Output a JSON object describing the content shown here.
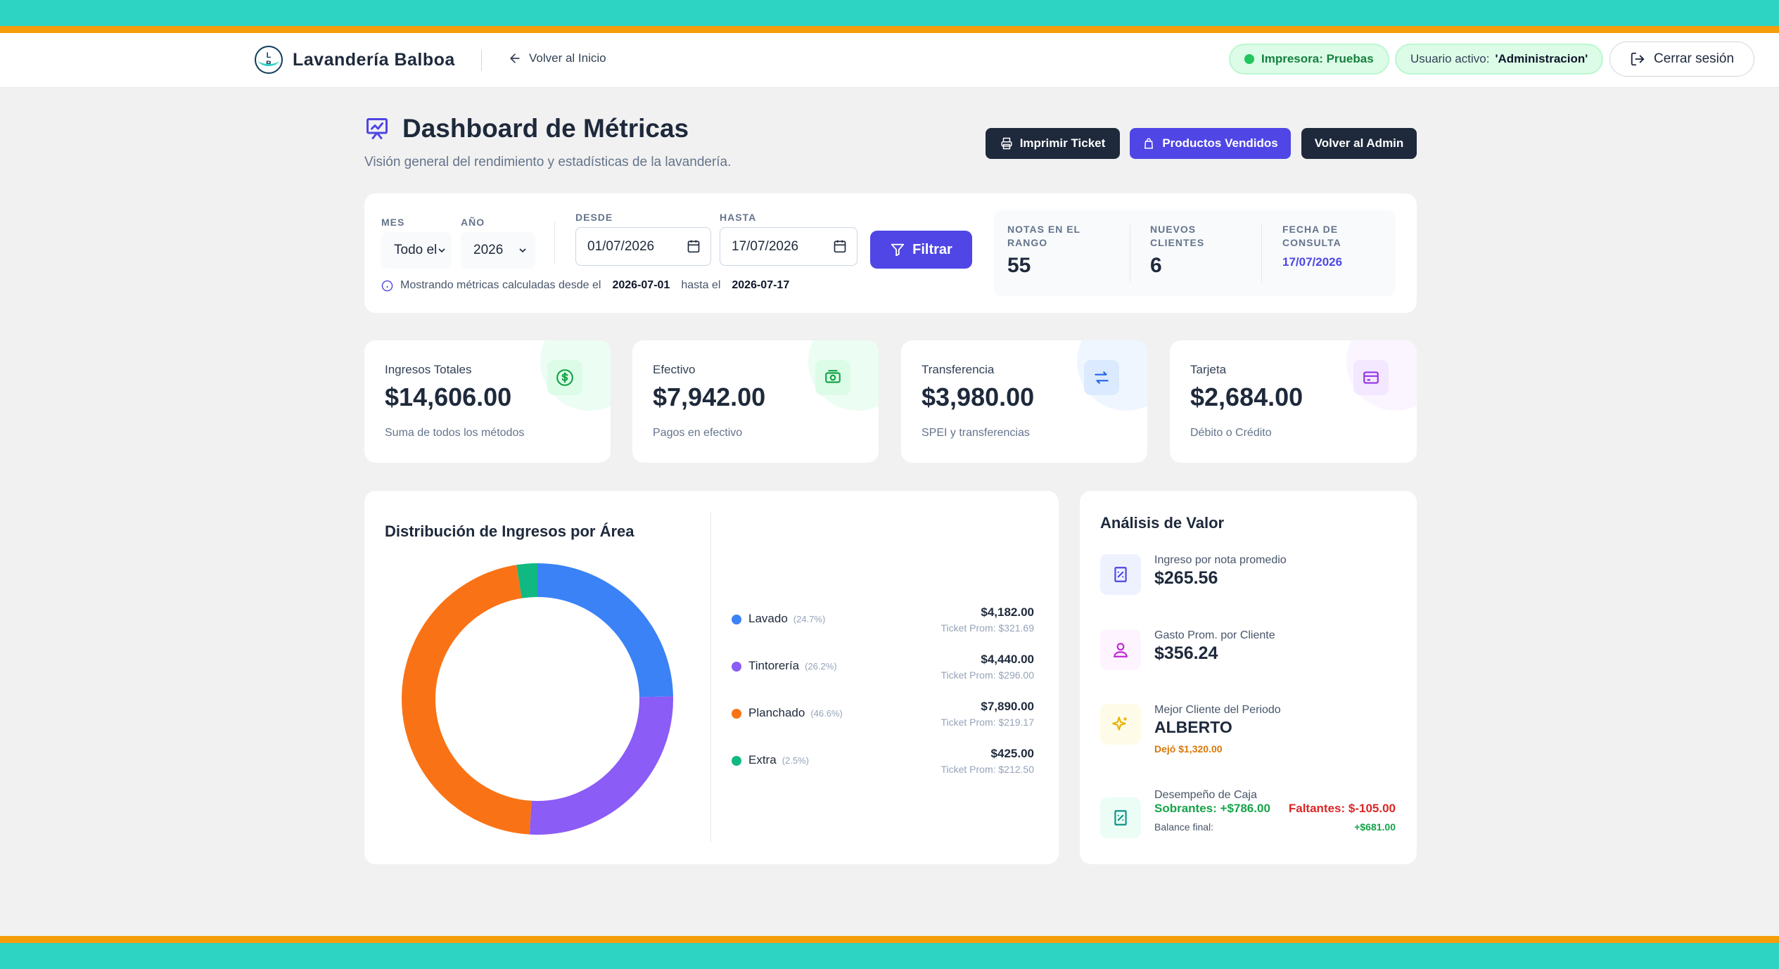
{
  "colors": {
    "teal": "#2dd4c4",
    "orange_stripe": "#f59e0b",
    "primary": "#4f46e5",
    "dark": "#1e293b",
    "green": "#16a34a",
    "red": "#dc2626"
  },
  "navbar": {
    "logo_letters": [
      "L",
      "B"
    ],
    "brand": "Lavandería Balboa",
    "back_home": "Volver al Inicio",
    "printer_status": "Impresora: Pruebas",
    "user_label": "Usuario activo:",
    "user_value": "'Administracion'",
    "logout": "Cerrar sesión"
  },
  "header": {
    "title": "Dashboard de Métricas",
    "subtitle": "Visión general del rendimiento y estadísticas de la lavandería.",
    "btn_print": "Imprimir Ticket",
    "btn_products": "Productos Vendidos",
    "btn_admin": "Volver al Admin"
  },
  "filters": {
    "mes_label": "MES",
    "mes_value": "Todo el m",
    "anio_label": "AÑO",
    "anio_value": "2026",
    "desde_label": "DESDE",
    "desde_value": "01/07/2026",
    "hasta_label": "HASTA",
    "hasta_value": "17/07/2026",
    "filter_btn": "Filtrar",
    "info_prefix": "Mostrando métricas calculadas desde el",
    "info_from": "2026-07-01",
    "info_mid": "hasta el",
    "info_to": "2026-07-17"
  },
  "summary": {
    "notas_label": "NOTAS EN EL RANGO",
    "notas_value": "55",
    "clientes_label": "NUEVOS CLIENTES",
    "clientes_value": "6",
    "fecha_label": "FECHA DE CONSULTA",
    "fecha_value": "17/07/2026"
  },
  "kpis": [
    {
      "title": "Ingresos Totales",
      "value": "$14,606.00",
      "sub": "Suma de todos los métodos",
      "icon": "dollar-circle-icon",
      "color": "#16a34a",
      "bg": "#dcfce7"
    },
    {
      "title": "Efectivo",
      "value": "$7,942.00",
      "sub": "Pagos en efectivo",
      "icon": "cash-icon",
      "color": "#16a34a",
      "bg": "#dcfce7"
    },
    {
      "title": "Transferencia",
      "value": "$3,980.00",
      "sub": "SPEI y transferencias",
      "icon": "transfer-arrows-icon",
      "color": "#2563eb",
      "bg": "#dbeafe"
    },
    {
      "title": "Tarjeta",
      "value": "$2,684.00",
      "sub": "Débito o Crédito",
      "icon": "credit-card-icon",
      "color": "#9333ea",
      "bg": "#f3e8ff"
    }
  ],
  "distribution": {
    "title": "Distribución de Ingresos por Área",
    "items": [
      {
        "name": "Lavado",
        "pct": "(24.7%)",
        "amount": "$4,182.00",
        "ticket": "Ticket Prom: $321.69",
        "color": "#3b82f6"
      },
      {
        "name": "Tintorería",
        "pct": "(26.2%)",
        "amount": "$4,440.00",
        "ticket": "Ticket Prom: $296.00",
        "color": "#8b5cf6"
      },
      {
        "name": "Planchado",
        "pct": "(46.6%)",
        "amount": "$7,890.00",
        "ticket": "Ticket Prom: $219.17",
        "color": "#f97316"
      },
      {
        "name": "Extra",
        "pct": "(2.5%)",
        "amount": "$425.00",
        "ticket": "Ticket Prom: $212.50",
        "color": "#10b981"
      }
    ]
  },
  "chart_data": {
    "type": "pie",
    "categories": [
      "Lavado",
      "Tintorería",
      "Planchado",
      "Extra"
    ],
    "values": [
      4182.0,
      4440.0,
      7890.0,
      425.0
    ],
    "colors": [
      "#3b82f6",
      "#8b5cf6",
      "#f97316",
      "#10b981"
    ]
  },
  "analysis": {
    "title": "Análisis de Valor",
    "avg_note_label": "Ingreso por nota promedio",
    "avg_note_value": "$265.56",
    "avg_client_label": "Gasto Prom. por Cliente",
    "avg_client_value": "$356.24",
    "best_client_label": "Mejor Cliente del Periodo",
    "best_client_value": "ALBERTO",
    "best_client_note": "Dejó $1,320.00",
    "caja_label": "Desempeño de Caja",
    "sobrantes": "Sobrantes: +$786.00",
    "faltantes": "Faltantes: $-105.00",
    "balance_label": "Balance final:",
    "balance_value": "+$681.00"
  }
}
